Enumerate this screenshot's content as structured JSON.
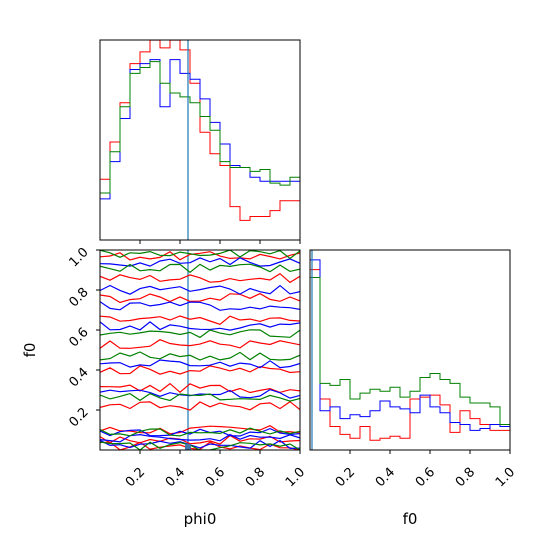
{
  "chart_data": {
    "type": "corner",
    "parameters": [
      "phi0",
      "f0"
    ],
    "axis_labels": {
      "x_left": "phi0",
      "x_right": "f0",
      "y_left": "f0"
    },
    "ticks": {
      "phi0": [
        "0.2",
        "0.4",
        "0.6",
        "0.8",
        "1.0"
      ],
      "f0_x": [
        "0.2",
        "0.4",
        "0.6",
        "0.8",
        "1.0"
      ],
      "f0_y": [
        "0.2",
        "0.4",
        "0.6",
        "0.8",
        "1.0"
      ]
    },
    "ranges": {
      "phi0": [
        0,
        1
      ],
      "f0": [
        0,
        1
      ]
    },
    "truth": {
      "phi0": 0.44,
      "f0": 0.0,
      "color": "#1f77b4"
    },
    "series": [
      {
        "color": "#ff0000",
        "hist_phi0": [
          0.31,
          0.5,
          0.7,
          0.9,
          0.96,
          1.02,
          0.98,
          1.02,
          0.97,
          0.8,
          0.55,
          0.44,
          0.38,
          0.17,
          0.1,
          0.12,
          0.12,
          0.15,
          0.2,
          0.2
        ],
        "hist_f0": [
          0.92,
          0.26,
          0.12,
          0.08,
          0.06,
          0.12,
          0.05,
          0.06,
          0.07,
          0.06,
          0.26,
          0.27,
          0.28,
          0.23,
          0.09,
          0.2,
          0.16,
          0.13,
          0.1,
          0.1
        ]
      },
      {
        "color": "#0000ff",
        "hist_phi0": [
          0.21,
          0.4,
          0.62,
          0.87,
          0.9,
          0.92,
          0.68,
          0.92,
          0.85,
          0.82,
          0.72,
          0.6,
          0.49,
          0.38,
          0.37,
          0.32,
          0.3,
          0.3,
          0.3,
          0.3
        ],
        "hist_f0": [
          0.97,
          0.2,
          0.22,
          0.16,
          0.18,
          0.17,
          0.2,
          0.25,
          0.22,
          0.21,
          0.19,
          0.28,
          0.22,
          0.19,
          0.14,
          0.13,
          0.1,
          0.11,
          0.13,
          0.12
        ]
      },
      {
        "color": "#008000",
        "hist_phi0": [
          0.24,
          0.45,
          0.68,
          0.85,
          0.88,
          0.91,
          0.8,
          0.75,
          0.73,
          0.7,
          0.63,
          0.56,
          0.4,
          0.37,
          0.37,
          0.35,
          0.36,
          0.29,
          0.28,
          0.32
        ],
        "hist_f0": [
          0.88,
          0.34,
          0.33,
          0.36,
          0.26,
          0.29,
          0.31,
          0.3,
          0.32,
          0.27,
          0.3,
          0.37,
          0.39,
          0.36,
          0.34,
          0.27,
          0.24,
          0.24,
          0.22,
          0.13
        ]
      }
    ],
    "contour_levels_f0": [
      {
        "color": "#ff0000",
        "levels": [
          0.02,
          0.05,
          0.1,
          0.22,
          0.31,
          0.4,
          0.53,
          0.65,
          0.76,
          0.86,
          0.97
        ]
      },
      {
        "color": "#0000ff",
        "levels": [
          0.03,
          0.06,
          0.09,
          0.28,
          0.43,
          0.62,
          0.72,
          0.8,
          0.94
        ]
      },
      {
        "color": "#008000",
        "levels": [
          0.02,
          0.09,
          0.26,
          0.47,
          0.58,
          0.91,
          0.98
        ]
      }
    ],
    "grid": false,
    "legend": "none"
  }
}
